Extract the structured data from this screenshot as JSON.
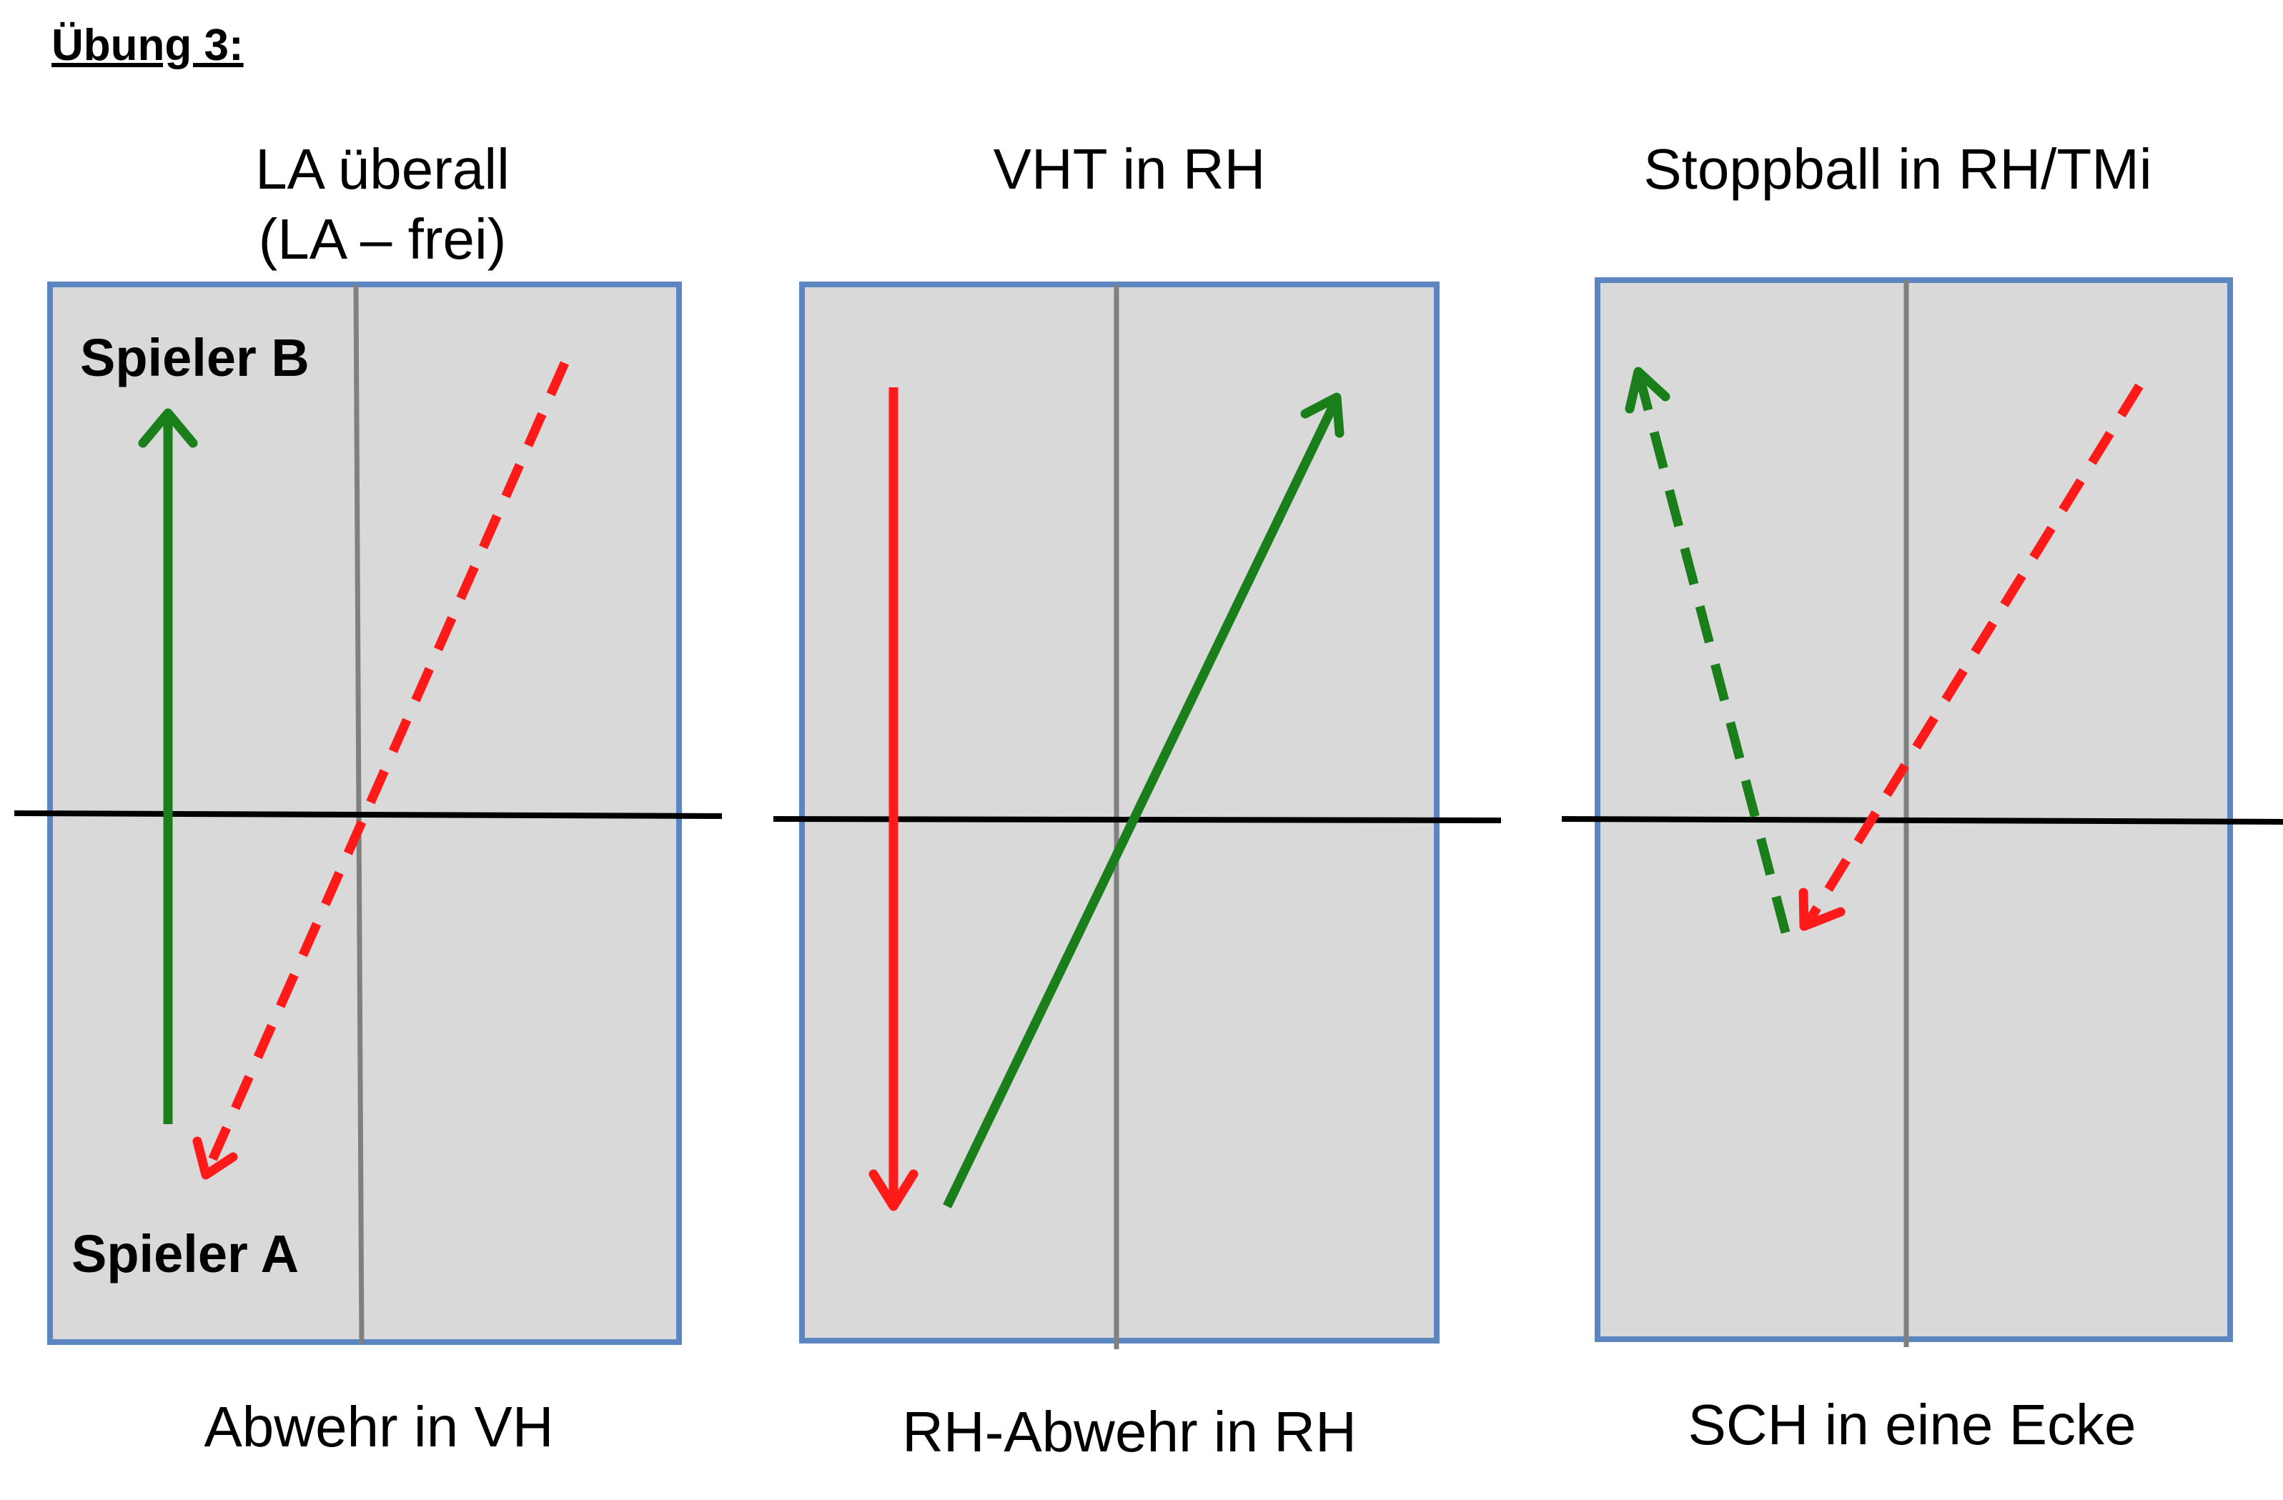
{
  "heading": "Übung 3:",
  "drills": [
    {
      "title_line1": "LA überall",
      "title_line2": "(LA – frei)",
      "caption": "Abwehr in VH",
      "player_top": "Spieler B",
      "player_bottom": "Spieler A"
    },
    {
      "title_line1": "VHT in RH",
      "caption": "RH-Abwehr in RH"
    },
    {
      "title_line1": "Stoppball in RH/TMi",
      "caption": "SCH in eine Ecke"
    }
  ],
  "colors": {
    "court_fill": "#d9d9d9",
    "court_border": "#5b86c0",
    "center_line": "#808080",
    "net": "#000000",
    "green_arrow": "#1a7f1a",
    "red_arrow": "#ff1a1a"
  },
  "icons": [
    "table-tennis-court",
    "arrow-solid",
    "arrow-dashed"
  ]
}
